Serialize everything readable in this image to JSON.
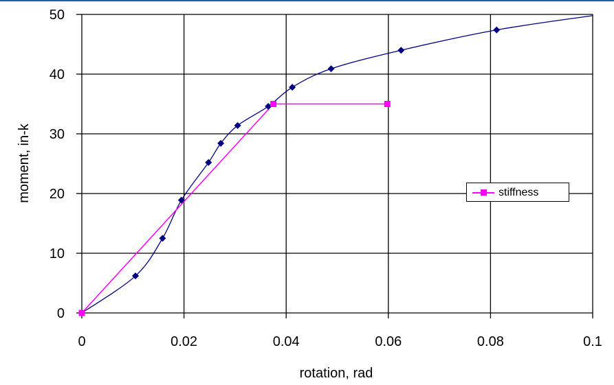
{
  "colors": {
    "top_rule": "#1f5fa8",
    "grid": "#000000",
    "curve": "#000080",
    "stiffness": "#ff00ff"
  },
  "chart_data": {
    "type": "scatter",
    "title": "",
    "xlabel": "rotation, rad",
    "ylabel": "moment, in-k",
    "xlim": [
      0,
      0.1
    ],
    "ylim": [
      0,
      50
    ],
    "x_ticks": [
      "0",
      "0.02",
      "0.04",
      "0.06",
      "0.08",
      "0.1"
    ],
    "y_ticks": [
      "0",
      "10",
      "20",
      "30",
      "40",
      "50"
    ],
    "x_tick_values": [
      0,
      0.02,
      0.04,
      0.06,
      0.08,
      0.1
    ],
    "y_tick_values": [
      0,
      10,
      20,
      30,
      40,
      50
    ],
    "grid": true,
    "legend_position": "right",
    "series": [
      {
        "style": "smooth-line-with-diamond-markers",
        "points": [
          [
            0,
            0
          ],
          [
            0.0105,
            6.2
          ],
          [
            0.0158,
            12.5
          ],
          [
            0.0195,
            18.9
          ],
          [
            0.0248,
            25.2
          ],
          [
            0.0272,
            28.4
          ],
          [
            0.0305,
            31.4
          ],
          [
            0.0365,
            34.6
          ],
          [
            0.0412,
            37.8
          ],
          [
            0.0488,
            40.9
          ],
          [
            0.0625,
            44.0
          ],
          [
            0.0812,
            47.4
          ]
        ],
        "line_end": [
          0.1,
          49.8
        ]
      },
      {
        "name": "stiffness",
        "style": "line-with-square-markers",
        "points": [
          [
            0,
            0
          ],
          [
            0.0375,
            35
          ],
          [
            0.0598,
            35
          ]
        ]
      }
    ]
  }
}
